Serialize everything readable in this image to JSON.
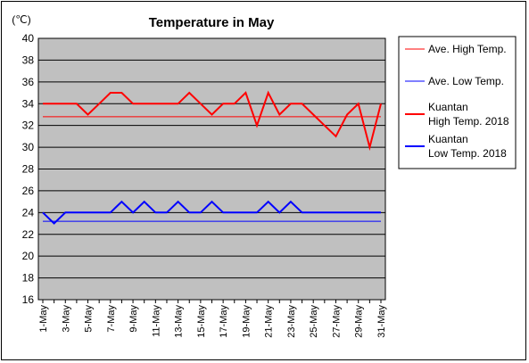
{
  "chart_data": {
    "type": "line",
    "title": "Temperature in May",
    "unit_label": "(℃)",
    "ylim": [
      16,
      40
    ],
    "y_ticks": [
      "40",
      "38",
      "36",
      "34",
      "32",
      "30",
      "28",
      "26",
      "24",
      "22",
      "20",
      "18",
      "16"
    ],
    "x_tick_labels": [
      "1-May",
      "3-May",
      "5-May",
      "7-May",
      "9-May",
      "11-May",
      "13-May",
      "15-May",
      "17-May",
      "19-May",
      "21-May",
      "23-May",
      "25-May",
      "27-May",
      "29-May",
      "31-May"
    ],
    "days": [
      1,
      2,
      3,
      4,
      5,
      6,
      7,
      8,
      9,
      10,
      11,
      12,
      13,
      14,
      15,
      16,
      17,
      18,
      19,
      20,
      21,
      22,
      23,
      24,
      25,
      26,
      27,
      28,
      29,
      30,
      31
    ],
    "grid": true,
    "legend_position": "right",
    "plot_background": "#c0c0c0",
    "series": [
      {
        "name": "Ave. High Temp.",
        "color": "#ff0000",
        "style": "thin",
        "values": [
          32.8,
          32.8,
          32.8,
          32.8,
          32.8,
          32.8,
          32.8,
          32.8,
          32.8,
          32.8,
          32.8,
          32.8,
          32.8,
          32.8,
          32.8,
          32.8,
          32.8,
          32.8,
          32.8,
          32.8,
          32.8,
          32.8,
          32.8,
          32.8,
          32.8,
          32.8,
          32.8,
          32.8,
          32.8,
          32.8,
          32.8
        ]
      },
      {
        "name": "Ave. Low Temp.",
        "color": "#0000ff",
        "style": "thin",
        "values": [
          23.2,
          23.2,
          23.2,
          23.2,
          23.2,
          23.2,
          23.2,
          23.2,
          23.2,
          23.2,
          23.2,
          23.2,
          23.2,
          23.2,
          23.2,
          23.2,
          23.2,
          23.2,
          23.2,
          23.2,
          23.2,
          23.2,
          23.2,
          23.2,
          23.2,
          23.2,
          23.2,
          23.2,
          23.2,
          23.2,
          23.2
        ]
      },
      {
        "name": "Kuantan High Temp. 2018",
        "name_lines": [
          "Kuantan",
          "High Temp. 2018"
        ],
        "color": "#ff0000",
        "style": "thick",
        "values": [
          34,
          34,
          34,
          34,
          33,
          34,
          35,
          35,
          34,
          34,
          34,
          34,
          34,
          35,
          34,
          33,
          34,
          34,
          35,
          32,
          35,
          33,
          34,
          34,
          33,
          32,
          31,
          33,
          34,
          30,
          34
        ]
      },
      {
        "name": "Kuantan Low Temp. 2018",
        "name_lines": [
          "Kuantan",
          "Low Temp. 2018"
        ],
        "color": "#0000ff",
        "style": "thick",
        "values": [
          24,
          23,
          24,
          24,
          24,
          24,
          24,
          25,
          24,
          25,
          24,
          24,
          25,
          24,
          24,
          25,
          24,
          24,
          24,
          24,
          25,
          24,
          25,
          24,
          24,
          24,
          24,
          24,
          24,
          24,
          24
        ]
      }
    ]
  }
}
